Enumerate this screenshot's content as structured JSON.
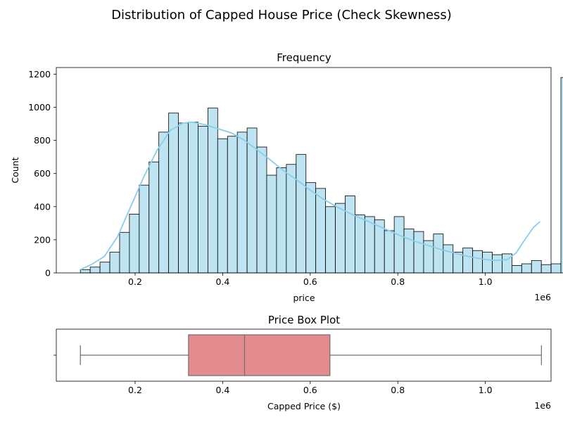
{
  "figure": {
    "title": "Distribution of Capped House Price (Check Skewness)"
  },
  "chart_data": [
    {
      "type": "bar",
      "subtype": "histogram",
      "title": "Frequency",
      "xlabel": "price",
      "ylabel": "Count",
      "x_offset_label": "1e6",
      "bin_start": 75000,
      "bin_width": 22400,
      "counts": [
        20,
        35,
        65,
        125,
        245,
        355,
        530,
        670,
        850,
        965,
        905,
        910,
        885,
        995,
        810,
        825,
        850,
        875,
        760,
        590,
        635,
        655,
        715,
        545,
        510,
        400,
        420,
        465,
        350,
        340,
        320,
        255,
        340,
        265,
        250,
        195,
        235,
        170,
        125,
        150,
        135,
        125,
        110,
        115,
        45,
        55,
        75,
        50,
        55,
        1180
      ],
      "kde": [
        [
          0.075,
          20
        ],
        [
          0.1,
          50
        ],
        [
          0.13,
          100
        ],
        [
          0.16,
          220
        ],
        [
          0.19,
          400
        ],
        [
          0.22,
          580
        ],
        [
          0.25,
          740
        ],
        [
          0.28,
          860
        ],
        [
          0.31,
          905
        ],
        [
          0.33,
          910
        ],
        [
          0.36,
          895
        ],
        [
          0.39,
          870
        ],
        [
          0.42,
          845
        ],
        [
          0.45,
          800
        ],
        [
          0.48,
          740
        ],
        [
          0.51,
          680
        ],
        [
          0.54,
          615
        ],
        [
          0.57,
          560
        ],
        [
          0.6,
          500
        ],
        [
          0.63,
          445
        ],
        [
          0.66,
          400
        ],
        [
          0.69,
          360
        ],
        [
          0.72,
          325
        ],
        [
          0.75,
          290
        ],
        [
          0.78,
          255
        ],
        [
          0.81,
          220
        ],
        [
          0.84,
          190
        ],
        [
          0.87,
          165
        ],
        [
          0.9,
          140
        ],
        [
          0.93,
          120
        ],
        [
          0.96,
          100
        ],
        [
          0.99,
          85
        ],
        [
          1.02,
          75
        ],
        [
          1.05,
          80
        ],
        [
          1.07,
          120
        ],
        [
          1.09,
          200
        ],
        [
          1.11,
          275
        ],
        [
          1.125,
          310
        ]
      ],
      "xlim": [
        0.02,
        1.15
      ],
      "ylim": [
        0,
        1240
      ],
      "x_ticks": [
        0.2,
        0.4,
        0.6,
        0.8,
        1.0
      ],
      "x_tick_labels": [
        "0.2",
        "0.4",
        "0.6",
        "0.8",
        "1.0"
      ],
      "y_ticks": [
        0,
        200,
        400,
        600,
        800,
        1000,
        1200
      ],
      "y_tick_labels": [
        "0",
        "200",
        "400",
        "600",
        "800",
        "1000",
        "1200"
      ],
      "colors": {
        "bar_fill": "#bde4f0",
        "bar_edge": "#000000",
        "kde": "#87ceeb"
      },
      "grid": false
    },
    {
      "type": "boxplot",
      "title": "Price Box Plot",
      "xlabel": "Capped Price ($)",
      "x_offset_label": "1e6",
      "whisker_low": 0.075,
      "q1": 0.322,
      "median": 0.45,
      "q3": 0.645,
      "whisker_high": 1.128,
      "xlim": [
        0.02,
        1.15
      ],
      "x_ticks": [
        0.2,
        0.4,
        0.6,
        0.8,
        1.0
      ],
      "x_tick_labels": [
        "0.2",
        "0.4",
        "0.6",
        "0.8",
        "1.0"
      ],
      "colors": {
        "box_fill": "#e38b8e",
        "line": "#6e6e6e"
      },
      "grid": false
    }
  ]
}
